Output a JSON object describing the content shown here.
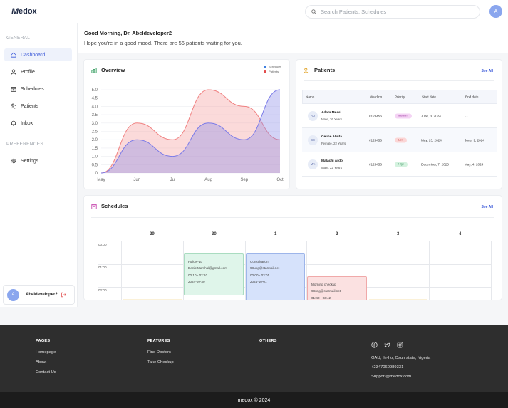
{
  "app": {
    "logo_text": "edox",
    "logo_mark": "M"
  },
  "header": {
    "search_placeholder": "Search Patients, Schedules",
    "avatar_initial": "A"
  },
  "sidebar": {
    "general_label": "GENERAL",
    "preferences_label": "PREFERENCES",
    "items": [
      {
        "label": "Dashboard",
        "icon": "home-icon",
        "active": true
      },
      {
        "label": "Profile",
        "icon": "user-icon"
      },
      {
        "label": "Schedules",
        "icon": "calendar-icon"
      },
      {
        "label": "Patients",
        "icon": "patients-icon"
      },
      {
        "label": "Inbox",
        "icon": "bell-icon"
      }
    ],
    "settings_label": "Settings",
    "user": {
      "initial": "A",
      "name": "Abeldeveloper2"
    }
  },
  "greeting": {
    "title": "Good Morning, Dr. Abeldeveloper2",
    "subtitle": "Hope you're in a good mood. There are 56 patients waiting for you."
  },
  "overview": {
    "title": "Overview",
    "legend": [
      "Schedules",
      "Patients"
    ],
    "colors": {
      "schedules": "#7b7be8",
      "patients": "#f07b7b"
    }
  },
  "chart_data": {
    "type": "area",
    "title": "Overview",
    "categories": [
      "May",
      "Jun",
      "Jul",
      "Aug",
      "Sep",
      "Oct"
    ],
    "series": [
      {
        "name": "Schedules",
        "values": [
          0,
          2,
          1,
          3,
          2,
          5
        ]
      },
      {
        "name": "Patients",
        "values": [
          0,
          3,
          2,
          5,
          4,
          2
        ]
      }
    ],
    "yticks": [
      "5.0",
      "4.5",
      "4.0",
      "3.5",
      "3.0",
      "2.5",
      "2.0",
      "1.5",
      "1.0",
      "0.5",
      "0"
    ],
    "ylim": [
      0,
      5
    ],
    "grid": true,
    "legend_position": "top-right"
  },
  "patients": {
    "title": "Patients",
    "see_all": "See All",
    "columns": [
      "Name",
      "Ward no",
      "Priority",
      "Start date",
      "End date"
    ],
    "rows": [
      {
        "initials": "AD",
        "name": "Adam Messi",
        "info": "Male, 26 Years",
        "ward": "#123456",
        "priority": "Medium",
        "start": "June, 3, 2024",
        "end": "- -"
      },
      {
        "initials": "CE",
        "name": "Celine Aliota",
        "info": "Female, 22 Years",
        "ward": "#123456",
        "priority": "Low",
        "start": "May, 23, 2024",
        "end": "June, 9, 2024"
      },
      {
        "initials": "MA",
        "name": "Malachi Ardo",
        "info": "Male, 22 Years",
        "ward": "#123456",
        "priority": "High",
        "start": "December, 7, 2023",
        "end": "May, 4, 2024"
      }
    ]
  },
  "schedules": {
    "title": "Schedules",
    "see_all": "See All",
    "days": [
      "29",
      "30",
      "1",
      "2",
      "3",
      "4"
    ],
    "times": [
      "00:00",
      "01:00",
      "02:00"
    ],
    "events": [
      {
        "title": "Follow-up",
        "email": "DanielMarshal@gmail.com",
        "time": "00:10 - 02:10",
        "date": "2024-09-30",
        "color": "#dff5ea"
      },
      {
        "title": "Consultation",
        "email": "98ung@starmail.net",
        "time": "00:00 - 03:01",
        "date": "2024-10-01",
        "color": "#d6e2fb"
      },
      {
        "title": "Morning checkup",
        "email": "98ung@starmail.net",
        "time": "01:40 - 03:42",
        "color": "#fbe1e1"
      }
    ]
  },
  "footer": {
    "pages_heading": "PAGES",
    "pages": [
      "Homepage",
      "About",
      "Contact Us"
    ],
    "features_heading": "FEATURES",
    "features": [
      "Find Doctors",
      "Take Checkup"
    ],
    "others_heading": "OTHERS",
    "address": "OAU, Ile-Ifo, Osun state, Nigeria",
    "phone": "+2347060989331",
    "email": "Support@medox.com",
    "copyright": "medox © 2024"
  }
}
